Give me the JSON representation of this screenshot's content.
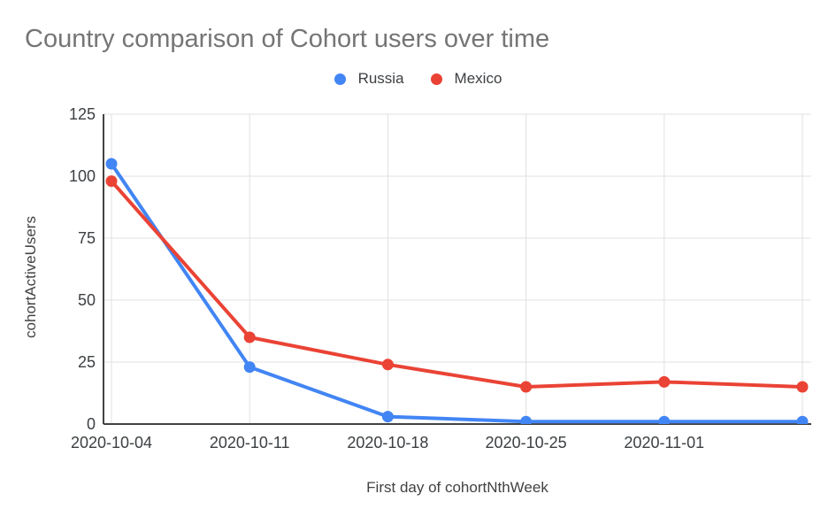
{
  "page": {
    "background": "#ffffff"
  },
  "header": {
    "title": "Country comparison of Cohort users over time",
    "title_color": "#757575"
  },
  "chart_data": {
    "type": "line",
    "title": "Country comparison of Cohort users over time",
    "xlabel": "First day of cohortNthWeek",
    "ylabel": "cohortActiveUsers",
    "x_tick_labels": [
      "2020-10-04",
      "2020-10-11",
      "2020-10-18",
      "2020-10-25",
      "2020-11-01"
    ],
    "num_points": 6,
    "y_ticks": [
      0,
      25,
      50,
      75,
      100,
      125
    ],
    "ylim": [
      0,
      125
    ],
    "grid": true,
    "legend_position": "top-center",
    "series": [
      {
        "name": "Russia",
        "color": "#4285F4",
        "values": [
          105,
          23,
          3,
          1,
          1,
          1
        ]
      },
      {
        "name": "Mexico",
        "color": "#EA4335",
        "values": [
          98,
          35,
          24,
          15,
          17,
          15
        ]
      }
    ],
    "styles": {
      "gridline_color": "#e0e0e0",
      "axis_line_color": "#424242",
      "tick_label_color": "#3c4043",
      "axis_title_color": "#424242"
    }
  }
}
